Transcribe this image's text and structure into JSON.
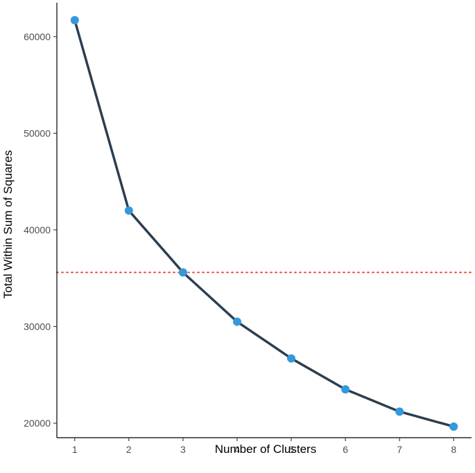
{
  "chart_data": {
    "type": "line",
    "title": "",
    "xlabel": "Number of Clusters",
    "ylabel": "Total Within Sum of Squares",
    "x": [
      1,
      2,
      3,
      4,
      5,
      6,
      7,
      8
    ],
    "series": [
      {
        "values": [
          61700,
          42000,
          35600,
          30500,
          26700,
          23500,
          21200,
          19650
        ]
      }
    ],
    "xlim": [
      0.67,
      8.33
    ],
    "ylim": [
      18500,
      63500
    ],
    "x_ticks": [
      1,
      2,
      3,
      4,
      5,
      6,
      7,
      8
    ],
    "y_ticks": [
      20000,
      30000,
      40000,
      50000,
      60000
    ],
    "x_tick_labels": [
      "1",
      "2",
      "3",
      "4",
      "5",
      "6",
      "7",
      "8"
    ],
    "y_tick_labels": [
      "20000",
      "30000",
      "40000",
      "50000",
      "60000"
    ],
    "reference_line": {
      "orientation": "horizontal",
      "y": 35600,
      "style": "dotted"
    },
    "grid": false,
    "legend": "none",
    "colors": {
      "line": "#2c3e50",
      "points": "#3498db",
      "reference_line": "#e74c3c",
      "axis": "#000000",
      "tick_text": "#4d4d4d"
    }
  }
}
